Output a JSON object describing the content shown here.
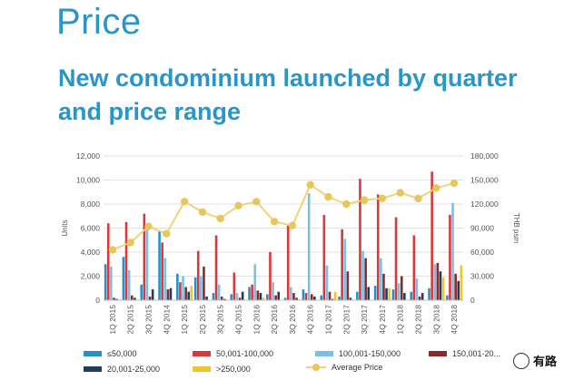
{
  "title": "Price",
  "subtitle": "New condominium launched by quarter and price range",
  "watermark": "有路",
  "chart_data": {
    "type": "bar",
    "categories": [
      "1Q 2015",
      "2Q 2015",
      "3Q 2015",
      "4Q 2014",
      "1Q 2015",
      "2Q 2015",
      "3Q 2015",
      "4Q 2015",
      "1Q 2016",
      "2Q 2016",
      "3Q 2016",
      "4Q 2016",
      "1Q 2017",
      "2Q 2017",
      "3Q 2017",
      "4Q 2017",
      "1Q 2018",
      "2Q 2018",
      "3Q 2018",
      "4Q 2018"
    ],
    "ylabel": "Units",
    "y2label": "THB psm",
    "ylim": [
      0,
      12000
    ],
    "y2lim": [
      0,
      180000
    ],
    "yticks": [
      "0",
      "2,000",
      "4,000",
      "6,000",
      "8,000",
      "10,000",
      "12,000"
    ],
    "y2ticks": [
      "0",
      "30,000",
      "60,000",
      "90,000",
      "120,000",
      "150,000",
      "180,000"
    ],
    "grid": true,
    "legend_position": "bottom",
    "colors": {
      "≤50,000": "#2a8fc4",
      "50,001-100,000": "#d8393b",
      "100,001-150,000": "#7cbfe6",
      "150,001-20...": "#8b2a2c",
      "20,001-25,000": "#213d59",
      ">250,000": "#f0c330",
      "Average Price": "#e8c65c"
    },
    "series": [
      {
        "name": "≤50,000",
        "values": [
          3000,
          3600,
          1300,
          5800,
          2200,
          1900,
          600,
          500,
          1100,
          500,
          200,
          900,
          400,
          300,
          700,
          1200,
          900,
          700,
          1000,
          400
        ]
      },
      {
        "name": "50,001-100,000",
        "values": [
          6400,
          6500,
          7200,
          4800,
          1500,
          4100,
          5400,
          2300,
          1300,
          4000,
          6200,
          600,
          7100,
          5900,
          10100,
          8800,
          6900,
          5400,
          10700,
          7100
        ]
      },
      {
        "name": "100,001-150,000",
        "values": [
          2800,
          2500,
          5900,
          3500,
          2000,
          2000,
          1300,
          600,
          3000,
          1500,
          1100,
          8900,
          2900,
          5100,
          4100,
          3500,
          1400,
          1800,
          3000,
          8100
        ]
      },
      {
        "name": "150,001-20...",
        "values": [
          200,
          400,
          300,
          900,
          1100,
          2800,
          300,
          200,
          800,
          400,
          600,
          500,
          700,
          2400,
          3500,
          2200,
          2000,
          300,
          3100,
          2200
        ]
      },
      {
        "name": "20,001-25,000",
        "values": [
          100,
          200,
          900,
          1000,
          700,
          300,
          100,
          700,
          600,
          700,
          200,
          300,
          100,
          200,
          1100,
          1000,
          600,
          600,
          2400,
          1600
        ]
      },
      {
        "name": ">250,000",
        "values": [
          0,
          0,
          0,
          0,
          1200,
          0,
          0,
          0,
          200,
          0,
          0,
          0,
          700,
          0,
          0,
          1000,
          0,
          0,
          1900,
          2900
        ]
      }
    ],
    "line": {
      "name": "Average Price",
      "axis": "right",
      "values": [
        63000,
        72000,
        92000,
        83000,
        123000,
        110000,
        102000,
        118000,
        123000,
        98000,
        93000,
        144000,
        129000,
        120000,
        125000,
        127000,
        134000,
        127000,
        140000,
        146000
      ]
    }
  }
}
